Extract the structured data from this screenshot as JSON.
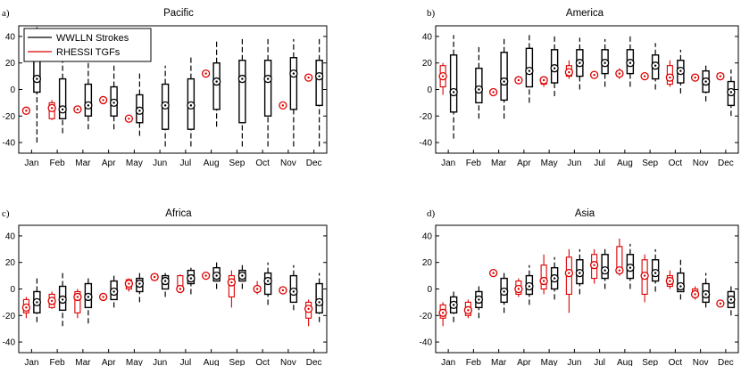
{
  "chart_data": [
    {
      "panel": "a)",
      "title": "Pacific",
      "type": "box",
      "categories": [
        "Jan",
        "Feb",
        "Mar",
        "Apr",
        "May",
        "Jun",
        "Jul",
        "Aug",
        "Sep",
        "Oct",
        "Nov",
        "Dec"
      ],
      "ylim": [
        -48,
        48
      ],
      "yticks": [
        -40,
        -20,
        0,
        20,
        40
      ],
      "legend": {
        "position": "top-left",
        "entries": [
          "WWLLN Strokes",
          "RHESSI TGFs"
        ]
      },
      "series": [
        {
          "name": "WWLLN Strokes",
          "color": "#000000",
          "boxes": [
            {
              "wl": -40,
              "q1": -2,
              "median": 8,
              "q3": 28,
              "wh": 47
            },
            {
              "wl": -33,
              "q1": -22,
              "median": -15,
              "q3": 8,
              "wh": 25
            },
            {
              "wl": -30,
              "q1": -20,
              "median": -12,
              "q3": 4,
              "wh": 20
            },
            {
              "wl": -30,
              "q1": -20,
              "median": -10,
              "q3": 2,
              "wh": 18
            },
            {
              "wl": -35,
              "q1": -25,
              "median": -16,
              "q3": -4,
              "wh": 12
            },
            {
              "wl": -43,
              "q1": -30,
              "median": -12,
              "q3": 4,
              "wh": 18
            },
            {
              "wl": -43,
              "q1": -30,
              "median": -12,
              "q3": 8,
              "wh": 25
            },
            {
              "wl": -28,
              "q1": -15,
              "median": 6,
              "q3": 20,
              "wh": 38
            },
            {
              "wl": -43,
              "q1": -25,
              "median": 8,
              "q3": 22,
              "wh": 38
            },
            {
              "wl": -43,
              "q1": -20,
              "median": 8,
              "q3": 22,
              "wh": 38
            },
            {
              "wl": -43,
              "q1": -15,
              "median": 12,
              "q3": 24,
              "wh": 38
            },
            {
              "wl": -43,
              "q1": -12,
              "median": 10,
              "q3": 22,
              "wh": 38
            }
          ]
        },
        {
          "name": "RHESSI TGFs",
          "color": "#dd0000",
          "boxes": [
            {
              "median": -16
            },
            {
              "wl": -23,
              "q1": -22,
              "median": -14,
              "q3": -10,
              "wh": -8
            },
            {
              "median": -15
            },
            {
              "median": -8
            },
            {
              "median": -22
            },
            null,
            null,
            {
              "median": 12
            },
            null,
            null,
            {
              "median": -12
            },
            {
              "median": 9
            }
          ]
        }
      ]
    },
    {
      "panel": "b)",
      "title": "America",
      "type": "box",
      "categories": [
        "Jan",
        "Feb",
        "Mar",
        "Apr",
        "May",
        "Jun",
        "Jul",
        "Aug",
        "Sep",
        "Oct",
        "Nov",
        "Dec"
      ],
      "ylim": [
        -48,
        48
      ],
      "yticks": [
        -40,
        -20,
        0,
        20,
        40
      ],
      "series": [
        {
          "name": "WWLLN Strokes",
          "color": "#000000",
          "boxes": [
            {
              "wl": -37,
              "q1": -17,
              "median": -2,
              "q3": 26,
              "wh": 41
            },
            {
              "wl": -22,
              "q1": -10,
              "median": 0,
              "q3": 16,
              "wh": 32
            },
            {
              "wl": -22,
              "q1": -8,
              "median": 6,
              "q3": 28,
              "wh": 40
            },
            {
              "wl": -10,
              "q1": 2,
              "median": 14,
              "q3": 31,
              "wh": 43
            },
            {
              "wl": -5,
              "q1": 5,
              "median": 16,
              "q3": 30,
              "wh": 41
            },
            {
              "wl": 0,
              "q1": 10,
              "median": 20,
              "q3": 30,
              "wh": 39
            },
            {
              "wl": 2,
              "q1": 12,
              "median": 20,
              "q3": 30,
              "wh": 38
            },
            {
              "wl": 2,
              "q1": 12,
              "median": 20,
              "q3": 30,
              "wh": 40
            },
            {
              "wl": 0,
              "q1": 8,
              "median": 18,
              "q3": 26,
              "wh": 35
            },
            {
              "wl": -3,
              "q1": 5,
              "median": 14,
              "q3": 22,
              "wh": 30
            },
            {
              "wl": -9,
              "q1": -2,
              "median": 6,
              "q3": 14,
              "wh": 20
            },
            {
              "wl": -20,
              "q1": -12,
              "median": -2,
              "q3": 6,
              "wh": 15
            }
          ]
        },
        {
          "name": "RHESSI TGFs",
          "color": "#dd0000",
          "boxes": [
            {
              "wl": -4,
              "q1": 2,
              "median": 10,
              "q3": 18,
              "wh": 20
            },
            null,
            {
              "median": -2
            },
            {
              "median": 7
            },
            {
              "wl": 2,
              "q1": 4,
              "median": 7,
              "q3": 9,
              "wh": 10
            },
            {
              "wl": 8,
              "q1": 10,
              "median": 13,
              "q3": 18,
              "wh": 22
            },
            {
              "median": 11
            },
            {
              "wl": 8,
              "q1": 10,
              "median": 12,
              "q3": 14,
              "wh": 16
            },
            {
              "median": 10
            },
            {
              "wl": 2,
              "q1": 4,
              "median": 9,
              "q3": 18,
              "wh": 22
            },
            {
              "median": 9
            },
            {
              "wl": 7,
              "q1": 8,
              "median": 10,
              "q3": 12,
              "wh": 13
            }
          ]
        }
      ]
    },
    {
      "panel": "c)",
      "title": "Africa",
      "type": "box",
      "categories": [
        "Jan",
        "Feb",
        "Mar",
        "Apr",
        "May",
        "Jun",
        "Jul",
        "Aug",
        "Sep",
        "Oct",
        "Nov",
        "Dec"
      ],
      "ylim": [
        -48,
        48
      ],
      "yticks": [
        -40,
        -20,
        0,
        20,
        40
      ],
      "series": [
        {
          "name": "WWLLN Strokes",
          "color": "#000000",
          "boxes": [
            {
              "wl": -25,
              "q1": -18,
              "median": -10,
              "q3": -2,
              "wh": 8
            },
            {
              "wl": -28,
              "q1": -16,
              "median": -8,
              "q3": 2,
              "wh": 12
            },
            {
              "wl": -26,
              "q1": -14,
              "median": -6,
              "q3": 4,
              "wh": 10
            },
            {
              "wl": -14,
              "q1": -8,
              "median": -2,
              "q3": 6,
              "wh": 10
            },
            {
              "wl": -10,
              "q1": -2,
              "median": 4,
              "q3": 8,
              "wh": 14
            },
            {
              "wl": -6,
              "q1": 0,
              "median": 6,
              "q3": 10,
              "wh": 12
            },
            {
              "wl": -4,
              "q1": 4,
              "median": 8,
              "q3": 14,
              "wh": 16
            },
            {
              "wl": 0,
              "q1": 6,
              "median": 10,
              "q3": 16,
              "wh": 20
            },
            {
              "wl": 0,
              "q1": 6,
              "median": 10,
              "q3": 14,
              "wh": 18
            },
            {
              "wl": -12,
              "q1": -4,
              "median": 6,
              "q3": 12,
              "wh": 20
            },
            {
              "wl": -16,
              "q1": -10,
              "median": -2,
              "q3": 10,
              "wh": 18
            },
            {
              "wl": -25,
              "q1": -18,
              "median": -10,
              "q3": 4,
              "wh": 12
            }
          ]
        },
        {
          "name": "RHESSI TGFs",
          "color": "#dd0000",
          "boxes": [
            {
              "wl": -22,
              "q1": -18,
              "median": -14,
              "q3": -8,
              "wh": -6
            },
            {
              "wl": -15,
              "q1": -14,
              "median": -9,
              "q3": -4,
              "wh": -2
            },
            {
              "wl": -22,
              "q1": -18,
              "median": -6,
              "q3": -2,
              "wh": 0
            },
            {
              "median": -6
            },
            {
              "wl": -2,
              "q1": 0,
              "median": 4,
              "q3": 7,
              "wh": 8
            },
            {
              "wl": 6,
              "q1": 7,
              "median": 9,
              "q3": 11,
              "wh": 12
            },
            {
              "wl": -2,
              "q1": -1,
              "median": 0,
              "q3": 10,
              "wh": 11
            },
            {
              "median": 10
            },
            {
              "wl": -14,
              "q1": -6,
              "median": 5,
              "q3": 10,
              "wh": 14
            },
            {
              "wl": -4,
              "q1": -2,
              "median": 0,
              "q3": 2,
              "wh": 6
            },
            {
              "wl": -4,
              "q1": -2,
              "median": -1,
              "q3": 1,
              "wh": 2
            },
            {
              "wl": -28,
              "q1": -22,
              "median": -15,
              "q3": -10,
              "wh": -8
            }
          ]
        }
      ]
    },
    {
      "panel": "d)",
      "title": "Asia",
      "type": "box",
      "categories": [
        "Jan",
        "Feb",
        "Mar",
        "Apr",
        "May",
        "Jun",
        "Jul",
        "Aug",
        "Sep",
        "Oct",
        "Nov",
        "Dec"
      ],
      "ylim": [
        -48,
        48
      ],
      "yticks": [
        -40,
        -20,
        0,
        20,
        40
      ],
      "series": [
        {
          "name": "WWLLN Strokes",
          "color": "#000000",
          "boxes": [
            {
              "wl": -25,
              "q1": -18,
              "median": -12,
              "q3": -6,
              "wh": 0
            },
            {
              "wl": -22,
              "q1": -14,
              "median": -8,
              "q3": -2,
              "wh": 4
            },
            {
              "wl": -18,
              "q1": -10,
              "median": -2,
              "q3": 8,
              "wh": 14
            },
            {
              "wl": -12,
              "q1": -4,
              "median": 2,
              "q3": 10,
              "wh": 18
            },
            {
              "wl": -8,
              "q1": 0,
              "median": 8,
              "q3": 16,
              "wh": 24
            },
            {
              "wl": -4,
              "q1": 4,
              "median": 12,
              "q3": 22,
              "wh": 30
            },
            {
              "wl": 0,
              "q1": 8,
              "median": 14,
              "q3": 26,
              "wh": 32
            },
            {
              "wl": 0,
              "q1": 8,
              "median": 16,
              "q3": 26,
              "wh": 34
            },
            {
              "wl": -2,
              "q1": 6,
              "median": 12,
              "q3": 22,
              "wh": 30
            },
            {
              "wl": -8,
              "q1": -2,
              "median": 2,
              "q3": 12,
              "wh": 22
            },
            {
              "wl": -14,
              "q1": -10,
              "median": -4,
              "q3": 4,
              "wh": 12
            },
            {
              "wl": -20,
              "q1": -14,
              "median": -8,
              "q3": -2,
              "wh": 4
            }
          ]
        },
        {
          "name": "RHESSI TGFs",
          "color": "#dd0000",
          "boxes": [
            {
              "wl": -28,
              "q1": -22,
              "median": -18,
              "q3": -12,
              "wh": -10
            },
            {
              "wl": -22,
              "q1": -20,
              "median": -16,
              "q3": -10,
              "wh": -8
            },
            {
              "median": 12
            },
            {
              "wl": -6,
              "q1": -4,
              "median": 0,
              "q3": 6,
              "wh": 8
            },
            {
              "wl": -4,
              "q1": 0,
              "median": 6,
              "q3": 18,
              "wh": 26
            },
            {
              "wl": -18,
              "q1": -4,
              "median": 12,
              "q3": 24,
              "wh": 30
            },
            {
              "wl": 4,
              "q1": 8,
              "median": 18,
              "q3": 26,
              "wh": 30
            },
            {
              "wl": 10,
              "q1": 12,
              "median": 14,
              "q3": 32,
              "wh": 38
            },
            {
              "wl": -10,
              "q1": -4,
              "median": 10,
              "q3": 22,
              "wh": 26
            },
            {
              "wl": 0,
              "q1": 2,
              "median": 6,
              "q3": 10,
              "wh": 14
            },
            {
              "wl": -8,
              "q1": -6,
              "median": -4,
              "q3": 0,
              "wh": 2
            },
            {
              "median": -11
            }
          ]
        }
      ]
    }
  ]
}
